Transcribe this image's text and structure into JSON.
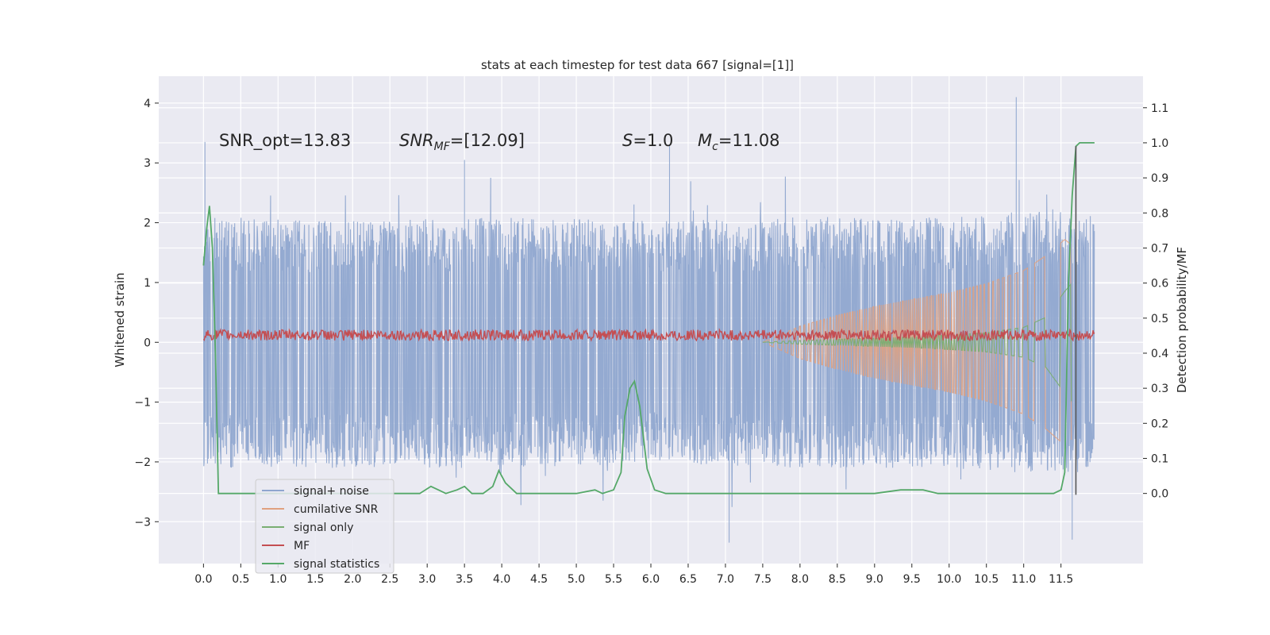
{
  "chart_data": {
    "type": "line",
    "title": "stats at each timestep for test data 667 [signal=[1]]",
    "ylabel_left": "Whitened strain",
    "ylabel_right": "Detection probability/MF",
    "xlim": [
      -0.6,
      12.6
    ],
    "ylim_left": [
      -3.7,
      4.45
    ],
    "ylim_right": [
      -0.2,
      1.19
    ],
    "x_ticks": [
      "0.0",
      "0.5",
      "1.0",
      "1.5",
      "2.0",
      "2.5",
      "3.0",
      "3.5",
      "4.0",
      "4.5",
      "5.0",
      "5.5",
      "6.0",
      "6.5",
      "7.0",
      "7.5",
      "8.0",
      "8.5",
      "9.0",
      "9.5",
      "10.0",
      "10.5",
      "11.0",
      "11.5"
    ],
    "y_ticks_left": [
      "−3",
      "−2",
      "−1",
      "0",
      "1",
      "2",
      "3",
      "4"
    ],
    "y_ticks_right": [
      "0.0",
      "0.1",
      "0.2",
      "0.3",
      "0.4",
      "0.5",
      "0.6",
      "0.7",
      "0.8",
      "0.9",
      "1.0",
      "1.1"
    ],
    "grid": true,
    "legend_position": "lower-left",
    "annotations": {
      "snr_opt": "SNR_opt=13.83",
      "snr_mf_main": "SNR",
      "snr_mf_sub": "MF",
      "snr_mf_value": "=[12.09]",
      "s_label": "S",
      "s_value": "=1.0",
      "mc_label": "M",
      "mc_sub": "c",
      "mc_value": "=11.08"
    },
    "series": [
      {
        "name": "signal+ noise",
        "color": "#8FA6CF",
        "envelope": {
          "x": [
            0,
            2,
            4,
            6,
            8,
            10,
            11.5,
            11.95
          ],
          "upper": [
            1.5,
            1.45,
            1.5,
            1.45,
            1.5,
            1.5,
            1.6,
            1.5
          ],
          "lower": [
            -1.5,
            -1.5,
            -1.5,
            -1.45,
            -1.5,
            -1.5,
            -1.6,
            -1.5
          ]
        },
        "peaks": [
          {
            "x": 0.02,
            "y": 3.35
          },
          {
            "x": 3.5,
            "y": 3.05
          },
          {
            "x": 6.25,
            "y": 3.3
          },
          {
            "x": 10.9,
            "y": 4.1
          },
          {
            "x": 7.05,
            "y": -3.35
          },
          {
            "x": 11.65,
            "y": -3.3
          }
        ]
      },
      {
        "name": "cumilative SNR",
        "color": "#E0A17F",
        "envelope": {
          "x": [
            7.5,
            8.0,
            8.5,
            9.0,
            9.5,
            10.0,
            10.5,
            11.0,
            11.3,
            11.55,
            11.65
          ],
          "upper": [
            0.0,
            0.27,
            0.45,
            0.6,
            0.72,
            0.83,
            0.98,
            1.2,
            1.45,
            1.72,
            1.62
          ],
          "lower": [
            0.0,
            -0.27,
            -0.45,
            -0.6,
            -0.72,
            -0.83,
            -0.98,
            -1.2,
            -1.45,
            -1.72,
            -1.62
          ]
        }
      },
      {
        "name": "signal only",
        "color": "#79AE72",
        "envelope": {
          "x": [
            7.5,
            8.0,
            8.5,
            9.0,
            9.5,
            10.0,
            10.5,
            11.0,
            11.3,
            11.55,
            11.65
          ],
          "upper": [
            0.0,
            0.03,
            0.05,
            0.07,
            0.09,
            0.12,
            0.16,
            0.25,
            0.42,
            0.85,
            1.0
          ],
          "lower": [
            0.0,
            -0.03,
            -0.05,
            -0.07,
            -0.09,
            -0.12,
            -0.16,
            -0.25,
            -0.42,
            -0.85,
            -1.0
          ]
        }
      },
      {
        "name": "MF",
        "color": "#C44E52",
        "center": 0.12,
        "amplitude": 0.09
      },
      {
        "name": "signal statistics",
        "color": "#55A868",
        "axis": "right",
        "x": [
          0.0,
          0.04,
          0.08,
          0.12,
          0.16,
          0.2,
          0.3,
          0.5,
          1.0,
          2.0,
          2.9,
          3.05,
          3.15,
          3.25,
          3.4,
          3.5,
          3.6,
          3.75,
          3.88,
          3.96,
          4.05,
          4.2,
          4.5,
          5.0,
          5.25,
          5.35,
          5.5,
          5.6,
          5.65,
          5.72,
          5.78,
          5.85,
          5.95,
          6.05,
          6.2,
          6.5,
          7.0,
          8.0,
          9.0,
          9.35,
          9.5,
          9.65,
          9.85,
          10.0,
          11.0,
          11.4,
          11.5,
          11.55,
          11.6,
          11.65,
          11.7,
          11.75,
          11.8,
          11.85,
          11.95
        ],
        "y": [
          0.65,
          0.75,
          0.82,
          0.7,
          0.4,
          0.0,
          0.0,
          0.0,
          0.0,
          0.0,
          0.0,
          0.02,
          0.01,
          0.0,
          0.01,
          0.02,
          0.0,
          0.0,
          0.02,
          0.065,
          0.03,
          0.0,
          0.0,
          0.0,
          0.01,
          0.0,
          0.01,
          0.06,
          0.22,
          0.3,
          0.32,
          0.25,
          0.07,
          0.01,
          0.0,
          0.0,
          0.0,
          0.0,
          0.0,
          0.01,
          0.01,
          0.01,
          0.0,
          0.0,
          0.0,
          0.0,
          0.01,
          0.06,
          0.6,
          0.85,
          0.99,
          1.0,
          1.0,
          1.0,
          1.0
        ]
      }
    ],
    "vertical_marker": {
      "x": 11.7,
      "color": "#555555",
      "y_range": [
        -2.55,
        3.28
      ]
    }
  }
}
